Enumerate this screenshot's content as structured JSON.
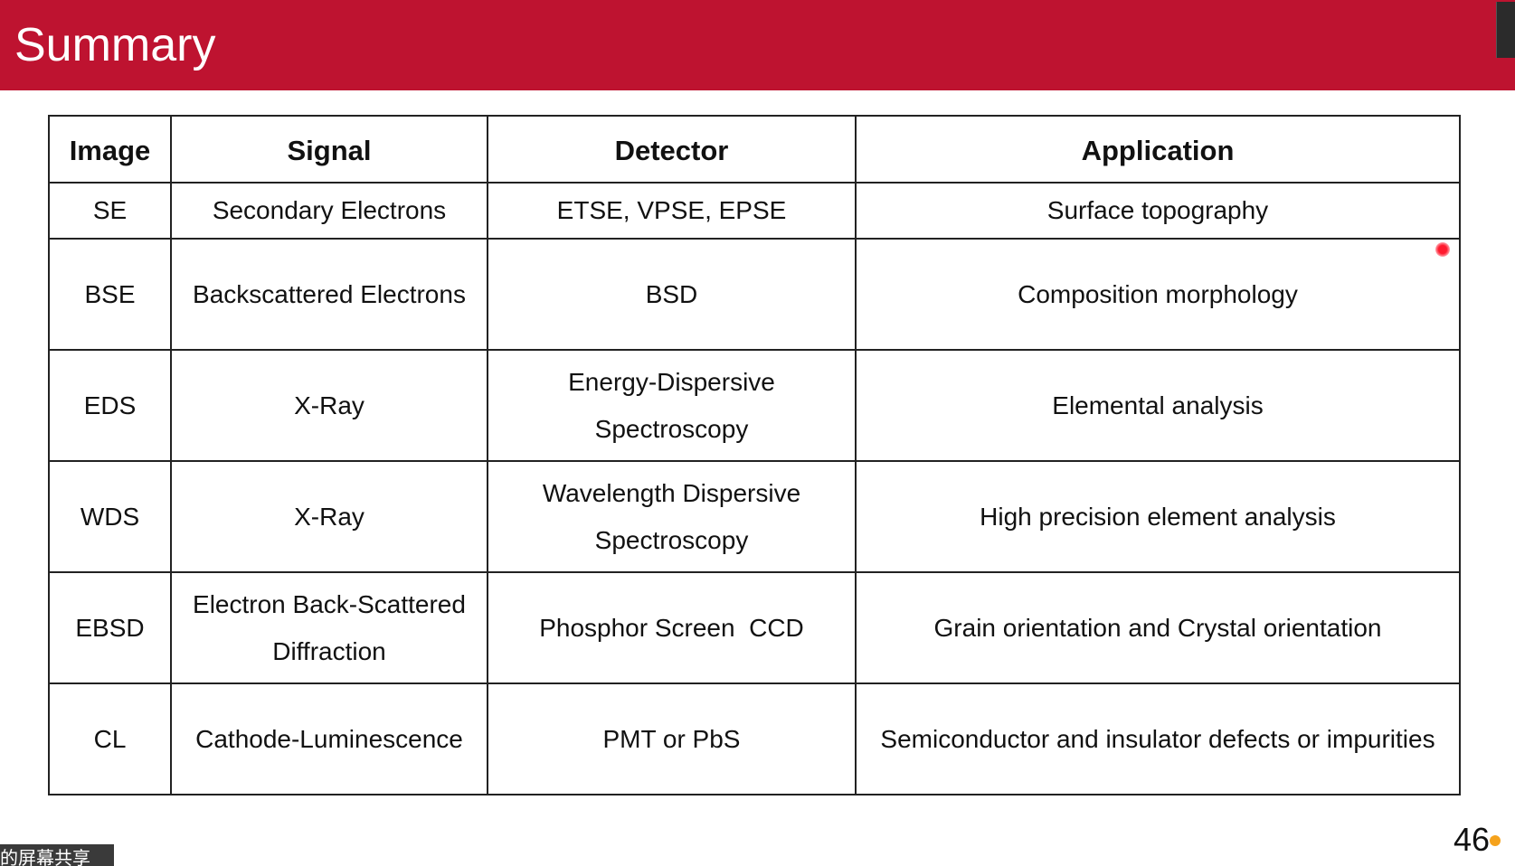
{
  "slide": {
    "title": "Summary",
    "page_number": "46",
    "share_label": "的屏幕共享"
  },
  "colors": {
    "title_bar": "#be1330",
    "laser_pointer": "#ff1a2e",
    "indicator_dot": "#f5a21c"
  },
  "table": {
    "headers": [
      "Image",
      "Signal",
      "Detector",
      "Application"
    ],
    "rows": [
      {
        "image": "SE",
        "signal": "Secondary Electrons",
        "detector": "ETSE, VPSE, EPSE",
        "application": "Surface topography"
      },
      {
        "image": "BSE",
        "signal": "Backscattered Electrons",
        "detector": "BSD",
        "application": "Composition morphology"
      },
      {
        "image": "EDS",
        "signal": "X-Ray",
        "detector": "Energy-Dispersive\nSpectroscopy",
        "application": "Elemental analysis"
      },
      {
        "image": "WDS",
        "signal": "X-Ray",
        "detector": "Wavelength Dispersive\nSpectroscopy",
        "application": "High precision element analysis"
      },
      {
        "image": "EBSD",
        "signal": "Electron Back-Scattered\nDiffraction",
        "detector": "Phosphor Screen  CCD",
        "application": "Grain orientation and Crystal orientation"
      },
      {
        "image": "CL",
        "signal": "Cathode-Luminescence",
        "detector": "PMT or PbS",
        "application": "Semiconductor and insulator defects or impurities"
      }
    ]
  }
}
